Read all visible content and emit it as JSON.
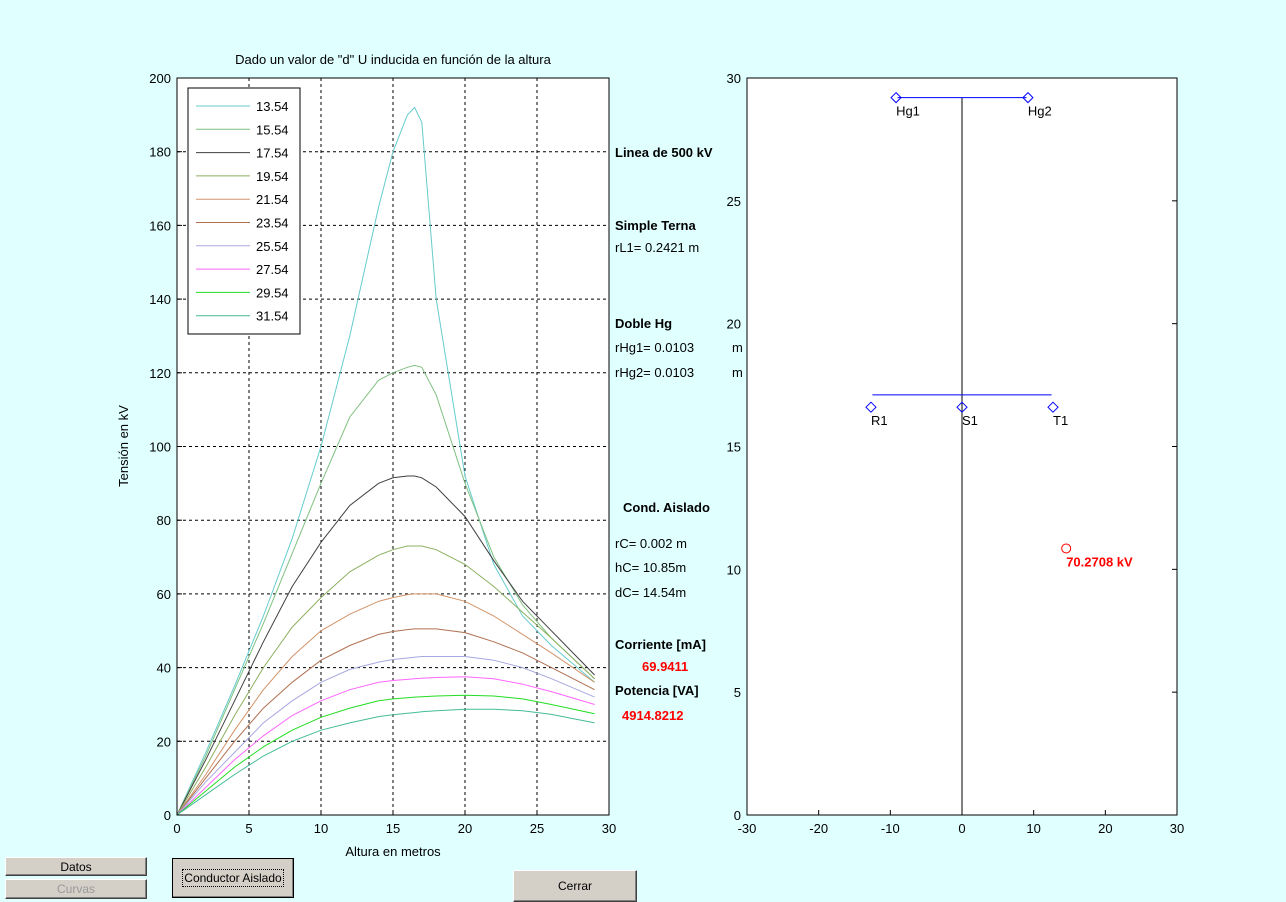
{
  "chart_data": [
    {
      "type": "line",
      "title": "Dado un valor de \"d\" U inducida en función de la altura",
      "xlabel": "Altura en metros",
      "ylabel": "Tensión en kV",
      "xlim": [
        0,
        30
      ],
      "ylim": [
        0,
        200
      ],
      "xticks": [
        0,
        5,
        10,
        15,
        20,
        25,
        30
      ],
      "yticks": [
        0,
        20,
        40,
        60,
        80,
        100,
        120,
        140,
        160,
        180,
        200
      ],
      "grid": true,
      "legend_position": "top-left",
      "x": [
        0,
        2,
        4,
        6,
        8,
        10,
        12,
        14,
        15,
        16,
        16.5,
        17,
        18,
        20,
        22,
        24,
        26,
        29
      ],
      "series": [
        {
          "name": "13.54",
          "color": "#66CCCC",
          "values": [
            0,
            17,
            35,
            54,
            75,
            100,
            130,
            165,
            180,
            190,
            192,
            188,
            140,
            92,
            68,
            54,
            46,
            36
          ]
        },
        {
          "name": "15.54",
          "color": "#80C080",
          "values": [
            0,
            16,
            34,
            52,
            71,
            90,
            108,
            118,
            120,
            121.5,
            122,
            121.5,
            114,
            90,
            70,
            57,
            48,
            37
          ]
        },
        {
          "name": "17.54",
          "color": "#404040",
          "values": [
            0,
            15,
            31,
            47,
            62,
            74,
            84,
            90,
            91.5,
            92,
            92,
            91.5,
            89,
            81,
            69,
            58,
            50,
            38
          ]
        },
        {
          "name": "19.54",
          "color": "#8CB060",
          "values": [
            0,
            13,
            27,
            40,
            51,
            59,
            66,
            70.5,
            72,
            73,
            73,
            73,
            72,
            68,
            62,
            55,
            48,
            37
          ]
        },
        {
          "name": "21.54",
          "color": "#D2936A",
          "values": [
            0,
            11,
            23,
            34,
            43,
            50,
            54.5,
            58,
            59,
            59.8,
            60,
            60,
            60,
            58,
            54,
            49,
            44,
            36
          ]
        },
        {
          "name": "23.54",
          "color": "#B07050",
          "values": [
            0,
            10,
            20,
            29,
            36,
            42,
            46,
            49,
            49.8,
            50.3,
            50.5,
            50.5,
            50.5,
            49.5,
            47,
            44,
            40,
            34
          ]
        },
        {
          "name": "25.54",
          "color": "#A8A8E0",
          "values": [
            0,
            9,
            17,
            25,
            31,
            36,
            39.5,
            41.5,
            42.2,
            42.6,
            42.8,
            43,
            43,
            43,
            42,
            40,
            37,
            32
          ]
        },
        {
          "name": "27.54",
          "color": "#FF66FF",
          "values": [
            0,
            7.5,
            15,
            21.5,
            27,
            31,
            34,
            36,
            36.5,
            36.8,
            37,
            37.1,
            37.3,
            37.5,
            37,
            35.5,
            33.5,
            30
          ]
        },
        {
          "name": "29.54",
          "color": "#22DD22",
          "values": [
            0,
            6.5,
            13,
            18.5,
            23,
            26.5,
            29,
            31,
            31.5,
            31.8,
            32,
            32.1,
            32.3,
            32.5,
            32.3,
            31.5,
            30,
            27.5
          ]
        },
        {
          "name": "31.54",
          "color": "#44BB99",
          "values": [
            0,
            5.5,
            11,
            16,
            20,
            23,
            25,
            26.7,
            27.2,
            27.6,
            27.8,
            28,
            28.3,
            28.7,
            28.7,
            28.3,
            27.3,
            25
          ]
        }
      ]
    },
    {
      "type": "scatter",
      "xlim": [
        -30,
        30
      ],
      "ylim": [
        0,
        30
      ],
      "xticks": [
        -30,
        -20,
        -10,
        0,
        10,
        20,
        30
      ],
      "yticks": [
        0,
        5,
        10,
        15,
        20,
        25,
        30
      ],
      "tower_axis_x": 0,
      "ground_wire_crossarm": {
        "x1": -9,
        "x2": 9,
        "y": 29.2
      },
      "phase_crossarm": {
        "x1": -12.5,
        "x2": 12.5,
        "y": 17.1
      },
      "points": [
        {
          "name": "Hg1",
          "x": -9.2,
          "y": 29.2,
          "marker": "diamond",
          "color": "#0000FF"
        },
        {
          "name": "Hg2",
          "x": 9.2,
          "y": 29.2,
          "marker": "diamond",
          "color": "#0000FF"
        },
        {
          "name": "R1",
          "x": -12.7,
          "y": 16.6,
          "marker": "diamond",
          "color": "#0000FF"
        },
        {
          "name": "S1",
          "x": 0,
          "y": 16.6,
          "marker": "diamond",
          "color": "#0000FF"
        },
        {
          "name": "T1",
          "x": 12.7,
          "y": 16.6,
          "marker": "diamond",
          "color": "#0000FF"
        },
        {
          "name": "70.2708  kV",
          "x": 14.54,
          "y": 10.85,
          "marker": "circle",
          "color": "#FF0000"
        }
      ]
    }
  ],
  "info": {
    "linea": "Linea de 500 kV",
    "terna": "Simple Terna",
    "rl1": "rL1=  0.2421 m",
    "doble_hg": "Doble Hg",
    "rhg1": "rHg1= 0.0103",
    "rhg2": "rHg2= 0.0103",
    "rhg_unit": "m",
    "cond_aislado": "Cond. Aislado",
    "rc": "rC=  0.002  m",
    "hc": "hC=  10.85m",
    "dc": "dC=  14.54m",
    "corriente_label": "Corriente [mA]",
    "corriente_value": "69.9411",
    "potencia_label": "Potencia [VA]",
    "potencia_value": "4914.8212"
  },
  "buttons": {
    "datos": "Datos",
    "curvas": "Curvas",
    "conductor": "Conductor Aislado",
    "cerrar": "Cerrar"
  }
}
